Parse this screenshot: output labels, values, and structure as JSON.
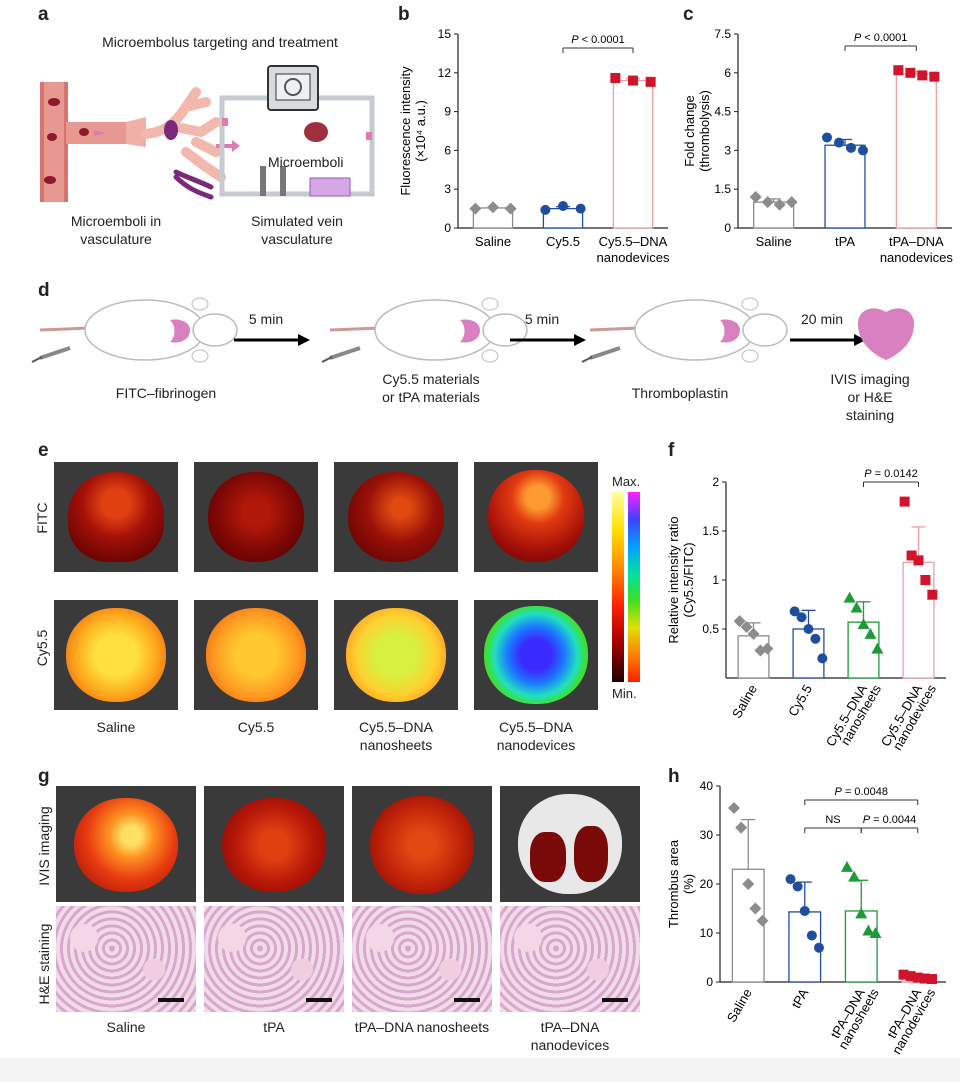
{
  "panels": {
    "a": {
      "label": "a",
      "title": "Microembolus targeting and treatment",
      "caption_left": "Microemboli in vasculature",
      "caption_right": "Simulated vein vasculature",
      "microemboli_label": "Microemboli"
    },
    "b": {
      "label": "b"
    },
    "c": {
      "label": "c"
    },
    "d": {
      "label": "d",
      "steps": [
        "FITC–fibrinogen",
        "Cy5.5 materials or tPA materials",
        "Thromboplastin",
        "IVIS imaging or H&E staining"
      ],
      "arrows": [
        "5 min",
        "5 min",
        "20 min"
      ]
    },
    "e": {
      "label": "e",
      "row_labels": [
        "FITC",
        "Cy5.5"
      ],
      "col_labels": [
        "Saline",
        "Cy5.5",
        "Cy5.5–DNA nanosheets",
        "Cy5.5–DNA nanodevices"
      ],
      "colorbar_max": "Max.",
      "colorbar_min": "Min."
    },
    "f": {
      "label": "f"
    },
    "g": {
      "label": "g",
      "row_labels": [
        "IVIS imaging",
        "H&E staining"
      ],
      "col_labels": [
        "Saline",
        "tPA",
        "tPA–DNA nanosheets",
        "tPA–DNA nanodevices"
      ]
    },
    "h": {
      "label": "h"
    }
  },
  "colors": {
    "grey": "#8c8c8c",
    "blue": "#1f4e9e",
    "green": "#1f9a3a",
    "red": "#d0142c",
    "bar_red": "#e8a0a8"
  },
  "chart_data": [
    {
      "id": "b",
      "type": "bar",
      "title": "",
      "ylabel": "Fluorescence intensity (×10⁴ a.u.)",
      "ylim": [
        0,
        15
      ],
      "yticks": [
        0,
        3,
        6,
        9,
        12,
        15
      ],
      "categories": [
        "Saline",
        "Cy5.5",
        "Cy5.5–DNA nanodevices"
      ],
      "values": [
        1.55,
        1.5,
        11.4
      ],
      "points": [
        [
          1.5,
          1.6,
          1.5
        ],
        [
          1.4,
          1.7,
          1.5
        ],
        [
          11.6,
          11.4,
          11.3
        ]
      ],
      "significance": [
        {
          "text": "P < 0.0001",
          "between": [
            1,
            2
          ]
        }
      ]
    },
    {
      "id": "c",
      "type": "bar",
      "title": "",
      "ylabel": "Fold change (thrombolysis)",
      "ylim": [
        0,
        7.5
      ],
      "yticks": [
        0,
        1.5,
        3,
        4.5,
        6,
        7.5
      ],
      "categories": [
        "Saline",
        "tPA",
        "tPA–DNA nanodevices"
      ],
      "values": [
        1.0,
        3.2,
        5.95
      ],
      "points": [
        [
          1.2,
          1.0,
          0.9,
          1.0
        ],
        [
          3.5,
          3.3,
          3.1,
          3.0
        ],
        [
          6.1,
          6.0,
          5.9,
          5.85
        ]
      ],
      "significance": [
        {
          "text": "P < 0.0001",
          "between": [
            1,
            2
          ]
        }
      ]
    },
    {
      "id": "f",
      "type": "bar",
      "title": "",
      "ylabel": "Relative intensity ratio (Cy5.5/FITC)",
      "ylim": [
        0,
        2.0
      ],
      "yticks": [
        0.5,
        1.0,
        1.5,
        2.0
      ],
      "categories": [
        "Saline",
        "Cy5.5",
        "Cy5.5–DNA nanosheets",
        "Cy5.5–DNA nanodevices"
      ],
      "values": [
        0.43,
        0.5,
        0.57,
        1.18
      ],
      "points": [
        [
          0.58,
          0.52,
          0.45,
          0.28,
          0.3
        ],
        [
          0.68,
          0.62,
          0.5,
          0.4,
          0.2
        ],
        [
          0.82,
          0.72,
          0.55,
          0.45,
          0.3
        ],
        [
          1.8,
          1.25,
          1.2,
          1.0,
          0.85
        ]
      ],
      "significance": [
        {
          "text": "P = 0.0142",
          "between": [
            2,
            3
          ]
        }
      ]
    },
    {
      "id": "h",
      "type": "bar",
      "title": "",
      "ylabel": "Thrombus area (%)",
      "ylim": [
        0,
        40
      ],
      "yticks": [
        0,
        10,
        20,
        30,
        40
      ],
      "categories": [
        "Saline",
        "tPA",
        "tPA–DNA nanosheets",
        "tPA–DNA nanodevices"
      ],
      "values": [
        23.0,
        14.3,
        14.5,
        1.0
      ],
      "points": [
        [
          35.5,
          31.5,
          20.0,
          15.0,
          12.5
        ],
        [
          21.0,
          19.5,
          14.5,
          9.5,
          7.0
        ],
        [
          23.5,
          21.5,
          14.0,
          10.5,
          10.0
        ],
        [
          1.5,
          1.2,
          0.9,
          0.7,
          0.6
        ]
      ],
      "significance": [
        {
          "text": "P = 0.0048",
          "between": [
            1,
            3
          ]
        },
        {
          "text": "NS",
          "between": [
            1,
            2
          ]
        },
        {
          "text": "P = 0.0044",
          "between": [
            2,
            3
          ]
        }
      ]
    }
  ]
}
